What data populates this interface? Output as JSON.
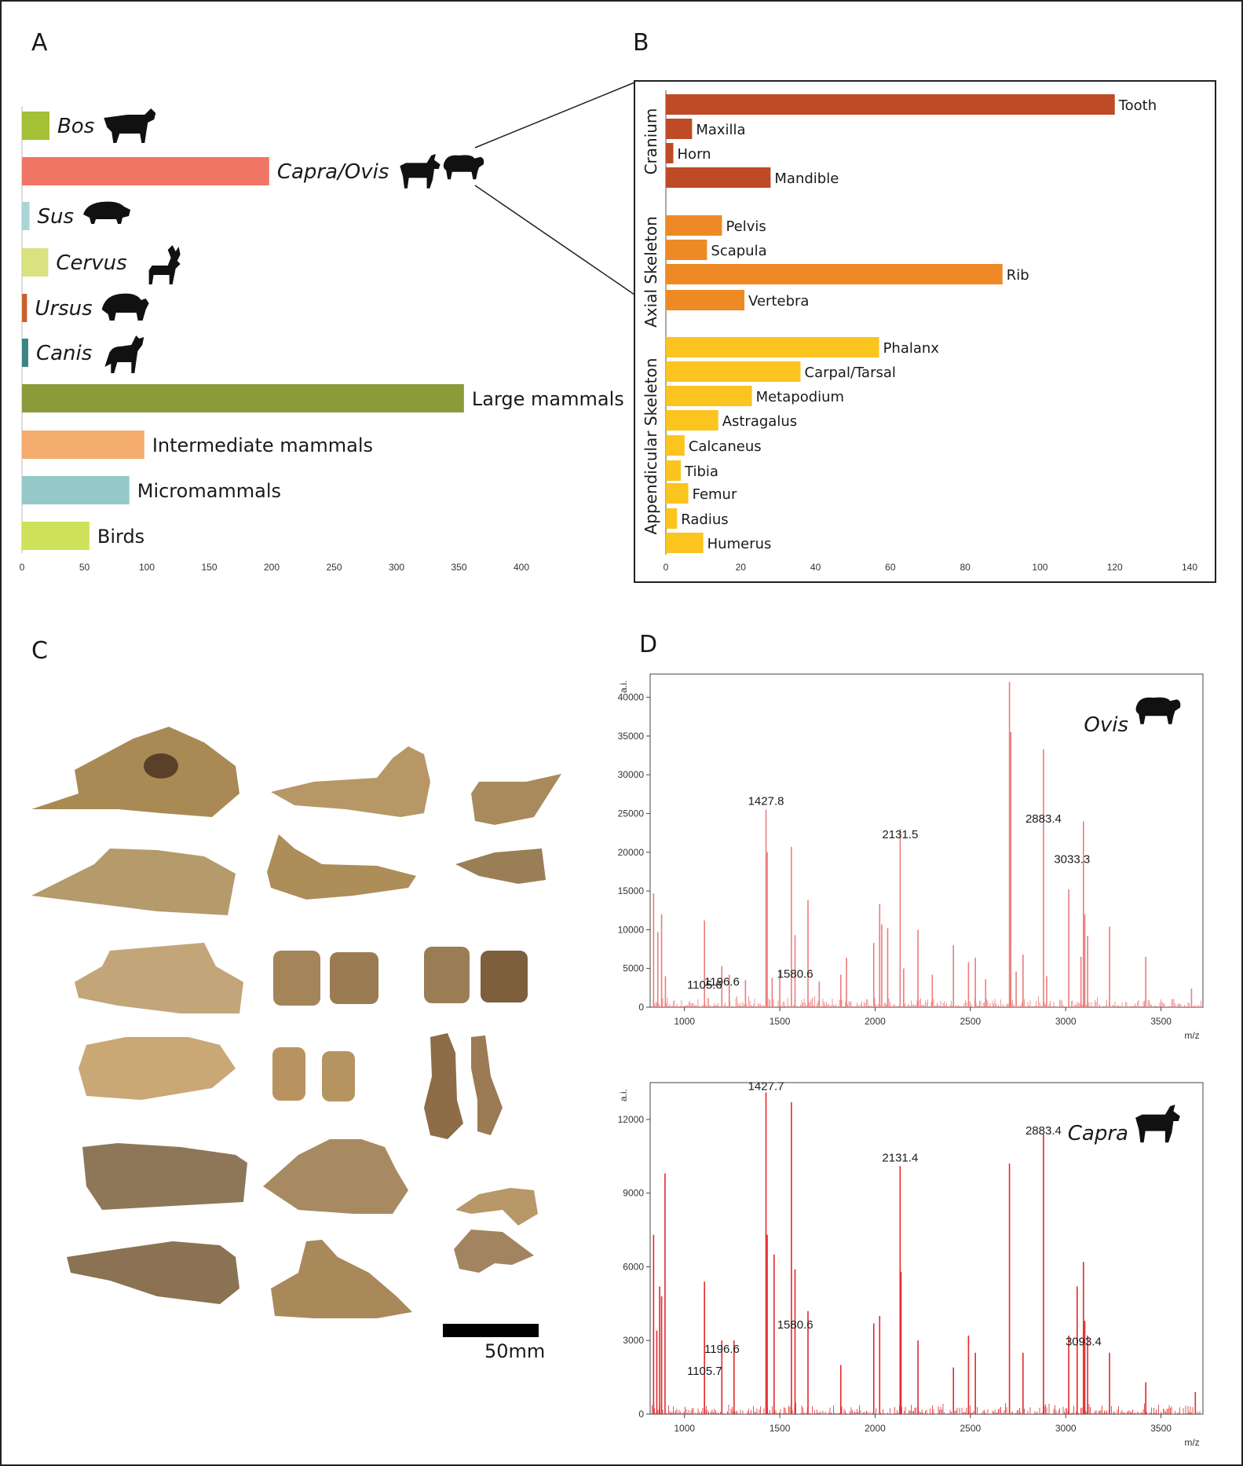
{
  "panels": {
    "a": {
      "letter": "A"
    },
    "b": {
      "letter": "B"
    },
    "c": {
      "letter": "C",
      "scale_label": "50mm"
    },
    "d": {
      "letter": "D"
    }
  },
  "chart_data": [
    {
      "id": "taxa",
      "type": "bar",
      "orientation": "horizontal",
      "categories": [
        "Bos",
        "Capra/Ovis",
        "Sus",
        "Cervus",
        "Ursus",
        "Canis",
        "Large mammals",
        "Intermediate mammals",
        "Micromammals",
        "Birds"
      ],
      "italic": [
        true,
        true,
        true,
        true,
        true,
        true,
        false,
        false,
        false,
        false
      ],
      "icons": [
        "cow-icon",
        "goat-sheep-icon",
        "boar-icon",
        "deer-icon",
        "bear-icon",
        "wolf-icon",
        "",
        "",
        "",
        ""
      ],
      "values": [
        22,
        198,
        6,
        21,
        4,
        5,
        354,
        98,
        86,
        54
      ],
      "colors": [
        "#a3c037",
        "#f07564",
        "#a9d5d8",
        "#d9e27f",
        "#c8622d",
        "#3b8584",
        "#8b9b3a",
        "#f4ac6e",
        "#94c9c8",
        "#cfe05a"
      ],
      "xlim": [
        0,
        400
      ],
      "xticks": [
        0,
        50,
        100,
        150,
        200,
        250,
        300,
        350,
        400
      ]
    },
    {
      "id": "elements",
      "type": "bar",
      "orientation": "horizontal",
      "groups": [
        {
          "name": "Cranium",
          "color": "#bf4a26",
          "categories": [
            "Tooth",
            "Maxilla",
            "Horn",
            "Mandible"
          ],
          "values": [
            120,
            7,
            2,
            28
          ]
        },
        {
          "name": "Axial Skeleton",
          "color": "#ee8a26",
          "categories": [
            "Pelvis",
            "Scapula",
            "Rib",
            "Vertebra"
          ],
          "values": [
            15,
            11,
            90,
            21
          ]
        },
        {
          "name": "Appendicular  Skeleton",
          "color": "#fbc41f",
          "categories": [
            "Phalanx",
            "Carpal/Tarsal",
            "Metapodium",
            "Astragalus",
            "Calcaneus",
            "Tibia",
            "Femur",
            "Radius",
            "Humerus"
          ],
          "values": [
            57,
            36,
            23,
            14,
            5,
            4,
            6,
            3,
            10
          ]
        }
      ],
      "xlim": [
        0,
        140
      ],
      "xticks": [
        0,
        20,
        40,
        60,
        80,
        100,
        120,
        140
      ]
    },
    {
      "id": "ovis-spectrum",
      "type": "line",
      "taxon_label": "Ovis",
      "icon": "sheep-icon",
      "color": "#ec7c7c",
      "ylabel": "a.i.",
      "xlabel": "m/z",
      "xlim": [
        820,
        3720
      ],
      "ylim": [
        0,
        43000
      ],
      "xticks": [
        1000,
        1500,
        2000,
        2500,
        3000,
        3500
      ],
      "yticks": [
        0,
        5000,
        10000,
        15000,
        20000,
        25000,
        30000,
        35000,
        40000
      ],
      "annotations": [
        {
          "x": 1105.6,
          "y": 1800,
          "text": "1105.6"
        },
        {
          "x": 1196.6,
          "y": 2200,
          "text": "1196.6"
        },
        {
          "x": 1427.8,
          "y": 25500,
          "text": "1427.8"
        },
        {
          "x": 1580.6,
          "y": 3200,
          "text": "1580.6"
        },
        {
          "x": 2131.5,
          "y": 21200,
          "text": "2131.5"
        },
        {
          "x": 2883.4,
          "y": 23200,
          "text": "2883.4"
        },
        {
          "x": 3033.3,
          "y": 18000,
          "text": "3033.3"
        }
      ],
      "peaks": [
        {
          "x": 838,
          "y": 14700
        },
        {
          "x": 860,
          "y": 9700
        },
        {
          "x": 880,
          "y": 12000
        },
        {
          "x": 900,
          "y": 4000
        },
        {
          "x": 1105,
          "y": 11200
        },
        {
          "x": 1196,
          "y": 5300
        },
        {
          "x": 1235,
          "y": 4200
        },
        {
          "x": 1320,
          "y": 3500
        },
        {
          "x": 1427.8,
          "y": 25500
        },
        {
          "x": 1434,
          "y": 20000
        },
        {
          "x": 1460,
          "y": 3800
        },
        {
          "x": 1500,
          "y": 4800
        },
        {
          "x": 1561,
          "y": 20700
        },
        {
          "x": 1580,
          "y": 9300
        },
        {
          "x": 1648,
          "y": 13800
        },
        {
          "x": 1707,
          "y": 3300
        },
        {
          "x": 1820,
          "y": 4200
        },
        {
          "x": 1850,
          "y": 6400
        },
        {
          "x": 1993,
          "y": 8300
        },
        {
          "x": 2024,
          "y": 13300
        },
        {
          "x": 2035,
          "y": 10700
        },
        {
          "x": 2066,
          "y": 10200
        },
        {
          "x": 2131.5,
          "y": 23000
        },
        {
          "x": 2150,
          "y": 5000
        },
        {
          "x": 2225,
          "y": 10000
        },
        {
          "x": 2300,
          "y": 4200
        },
        {
          "x": 2411,
          "y": 8000
        },
        {
          "x": 2490,
          "y": 5800
        },
        {
          "x": 2526,
          "y": 6400
        },
        {
          "x": 2580,
          "y": 3600
        },
        {
          "x": 2705,
          "y": 42000
        },
        {
          "x": 2712,
          "y": 35500
        },
        {
          "x": 2740,
          "y": 4600
        },
        {
          "x": 2776,
          "y": 6800
        },
        {
          "x": 2883.4,
          "y": 33300
        },
        {
          "x": 2900,
          "y": 4000
        },
        {
          "x": 3016,
          "y": 15200
        },
        {
          "x": 3080,
          "y": 6500
        },
        {
          "x": 3093,
          "y": 24000
        },
        {
          "x": 3100,
          "y": 12000
        },
        {
          "x": 3115,
          "y": 9200
        },
        {
          "x": 3230,
          "y": 10400
        },
        {
          "x": 3420,
          "y": 6500
        },
        {
          "x": 3660,
          "y": 2400
        }
      ]
    },
    {
      "id": "capra-spectrum",
      "type": "line",
      "taxon_label": "Capra",
      "icon": "goat-icon",
      "color": "#e3292b",
      "ylabel": "a.i.",
      "xlabel": "m/z",
      "xlim": [
        820,
        3720
      ],
      "ylim": [
        0,
        13500
      ],
      "xticks": [
        1000,
        1500,
        2000,
        2500,
        3000,
        3500
      ],
      "yticks": [
        0,
        3000,
        6000,
        9000,
        12000
      ],
      "annotations": [
        {
          "x": 1105.7,
          "y": 1400,
          "text": "1105.7"
        },
        {
          "x": 1196.6,
          "y": 2300,
          "text": "1196.6"
        },
        {
          "x": 1427.7,
          "y": 13000,
          "text": "1427.7"
        },
        {
          "x": 1580.6,
          "y": 3300,
          "text": "1580.6"
        },
        {
          "x": 2131.4,
          "y": 10100,
          "text": "2131.4"
        },
        {
          "x": 2883.4,
          "y": 11200,
          "text": "2883.4"
        },
        {
          "x": 3093.4,
          "y": 2600,
          "text": "3093.4"
        }
      ],
      "peaks": [
        {
          "x": 838,
          "y": 7300
        },
        {
          "x": 855,
          "y": 3400
        },
        {
          "x": 870,
          "y": 5200
        },
        {
          "x": 880,
          "y": 4800
        },
        {
          "x": 898,
          "y": 9800
        },
        {
          "x": 1105,
          "y": 5400
        },
        {
          "x": 1196,
          "y": 3000
        },
        {
          "x": 1260,
          "y": 3000
        },
        {
          "x": 1427.7,
          "y": 13100
        },
        {
          "x": 1434,
          "y": 7300
        },
        {
          "x": 1470,
          "y": 6500
        },
        {
          "x": 1561,
          "y": 12700
        },
        {
          "x": 1580,
          "y": 5900
        },
        {
          "x": 1648,
          "y": 4200
        },
        {
          "x": 1820,
          "y": 2000
        },
        {
          "x": 1993,
          "y": 3700
        },
        {
          "x": 2024,
          "y": 4000
        },
        {
          "x": 2131.4,
          "y": 10100
        },
        {
          "x": 2136,
          "y": 5800
        },
        {
          "x": 2225,
          "y": 3000
        },
        {
          "x": 2411,
          "y": 1900
        },
        {
          "x": 2490,
          "y": 3200
        },
        {
          "x": 2526,
          "y": 2500
        },
        {
          "x": 2705,
          "y": 10200
        },
        {
          "x": 2776,
          "y": 2500
        },
        {
          "x": 2883.4,
          "y": 11400
        },
        {
          "x": 3016,
          "y": 3200
        },
        {
          "x": 3060,
          "y": 5200
        },
        {
          "x": 3093,
          "y": 6200
        },
        {
          "x": 3100,
          "y": 3800
        },
        {
          "x": 3115,
          "y": 3200
        },
        {
          "x": 3230,
          "y": 2500
        },
        {
          "x": 3420,
          "y": 1300
        },
        {
          "x": 3680,
          "y": 900
        }
      ]
    }
  ]
}
